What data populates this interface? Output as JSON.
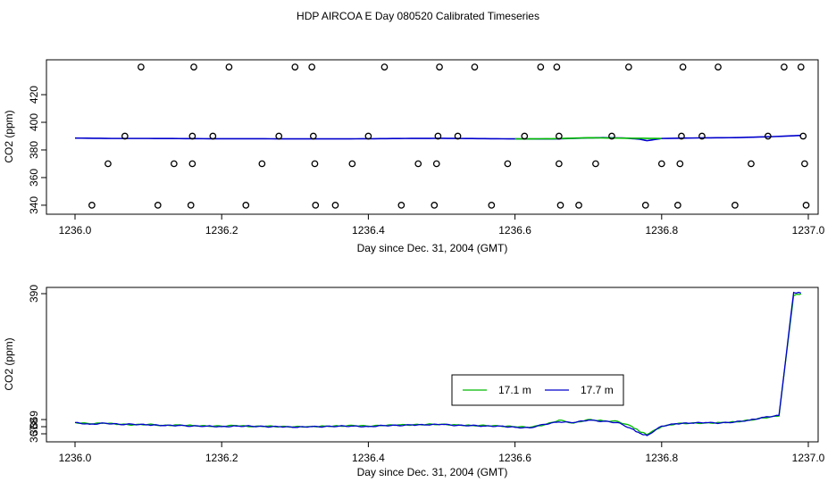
{
  "figure": {
    "title": "HDP AIRCOA E  Day 080520  Calibrated Timeseries",
    "colors": {
      "series_1": "#00bb00",
      "series_2": "#0000cc",
      "markers": "#000000",
      "frame": "#000000"
    }
  },
  "chart_data": [
    {
      "type": "scatter",
      "title": "",
      "xlabel": "Day since Dec. 31, 2004 (GMT)",
      "ylabel": "CO2 (ppm)",
      "xlim": [
        1236.0,
        1237.0
      ],
      "ylim": [
        338,
        442
      ],
      "xticks": [
        "1236.0",
        "1236.2",
        "1236.4",
        "1236.6",
        "1236.8",
        "1237.0"
      ],
      "yticks": [
        "340",
        "360",
        "380",
        "400",
        "420"
      ],
      "grid": false,
      "markers": {
        "x": [
          1236.023,
          1236.045,
          1236.068,
          1236.09,
          1236.113,
          1236.135,
          1236.158,
          1236.16,
          1236.16,
          1236.162,
          1236.188,
          1236.21,
          1236.233,
          1236.255,
          1236.278,
          1236.3,
          1236.323,
          1236.325,
          1236.327,
          1236.328,
          1236.355,
          1236.378,
          1236.4,
          1236.422,
          1236.445,
          1236.468,
          1236.49,
          1236.493,
          1236.495,
          1236.497,
          1236.522,
          1236.545,
          1236.568,
          1236.59,
          1236.613,
          1236.635,
          1236.657,
          1236.66,
          1236.66,
          1236.662,
          1236.687,
          1236.71,
          1236.732,
          1236.755,
          1236.778,
          1236.8,
          1236.822,
          1236.825,
          1236.827,
          1236.829,
          1236.855,
          1236.877,
          1236.9,
          1236.922,
          1236.945,
          1236.967,
          1236.99,
          1236.993,
          1236.995,
          1236.997
        ],
        "y": [
          340,
          370,
          390,
          440,
          340,
          370,
          340,
          370,
          390,
          440,
          390,
          440,
          340,
          370,
          390,
          440,
          440,
          390,
          370,
          340,
          340,
          370,
          390,
          440,
          340,
          370,
          340,
          370,
          390,
          440,
          390,
          440,
          340,
          370,
          390,
          440,
          440,
          390,
          370,
          340,
          340,
          370,
          390,
          440,
          340,
          370,
          340,
          370,
          390,
          440,
          390,
          440,
          340,
          370,
          390,
          440,
          440,
          390,
          370,
          340
        ]
      },
      "series": [
        {
          "color": "#0000cc",
          "x": [
            1236.0,
            1236.05,
            1236.1,
            1236.15,
            1236.2,
            1236.25,
            1236.3,
            1236.35,
            1236.4,
            1236.45,
            1236.5,
            1236.55,
            1236.6,
            1236.65,
            1236.7,
            1236.72,
            1236.75,
            1236.77,
            1236.78,
            1236.8,
            1236.85,
            1236.9,
            1236.95,
            1236.99
          ],
          "y": [
            388.6,
            388.3,
            388.3,
            388.2,
            388.1,
            388.1,
            388.0,
            388.0,
            388.1,
            388.3,
            388.4,
            388.2,
            388.0,
            387.9,
            388.7,
            388.9,
            388.6,
            387.8,
            386.7,
            388.3,
            388.7,
            388.9,
            389.6,
            390.5
          ]
        },
        {
          "color": "#00bb00",
          "x": [
            1236.6,
            1236.65,
            1236.7,
            1236.75,
            1236.8
          ],
          "y": [
            388.0,
            388.1,
            388.8,
            388.5,
            388.3
          ]
        }
      ]
    },
    {
      "type": "line",
      "title": "",
      "xlabel": "Day since Dec. 31, 2004 (GMT)",
      "ylabel": "CO2 (ppm)",
      "xlim": [
        1236.0,
        1237.0
      ],
      "ylim": [
        366.2,
        390.7
      ],
      "xticks": [
        "1236.0",
        "1236.2",
        "1236.4",
        "1236.6",
        "1236.8",
        "1237.0"
      ],
      "yticks": [
        "367",
        "368",
        "369",
        "390"
      ],
      "ytick_values": [
        366.8,
        368.0,
        369.2,
        390.4
      ],
      "grid": false,
      "legend": {
        "placement": "inside-lower-right",
        "entries": [
          "17.1 m",
          "17.7 m"
        ]
      },
      "series": [
        {
          "name": "17.1 m",
          "color": "#00bb00",
          "x": [
            1236.0,
            1236.02,
            1236.04,
            1236.06,
            1236.08,
            1236.1,
            1236.12,
            1236.14,
            1236.16,
            1236.18,
            1236.2,
            1236.22,
            1236.24,
            1236.26,
            1236.28,
            1236.3,
            1236.32,
            1236.34,
            1236.36,
            1236.38,
            1236.4,
            1236.42,
            1236.44,
            1236.46,
            1236.48,
            1236.5,
            1236.52,
            1236.54,
            1236.56,
            1236.58,
            1236.6,
            1236.62,
            1236.64,
            1236.66,
            1236.68,
            1236.7,
            1236.72,
            1236.74,
            1236.76,
            1236.77,
            1236.78,
            1236.8,
            1236.82,
            1236.84,
            1236.86,
            1236.88,
            1236.9,
            1236.92,
            1236.94,
            1236.96,
            1236.98,
            1236.99
          ],
          "y": [
            368.7,
            368.5,
            368.6,
            368.4,
            368.3,
            368.4,
            368.2,
            368.3,
            368.2,
            368.1,
            368.1,
            368.2,
            368.0,
            368.1,
            368.0,
            368.0,
            368.0,
            368.1,
            368.1,
            368.2,
            368.1,
            368.2,
            368.3,
            368.3,
            368.4,
            368.4,
            368.3,
            368.2,
            368.2,
            368.1,
            368.0,
            367.9,
            368.3,
            369.1,
            368.6,
            369.2,
            369.0,
            368.9,
            368.0,
            367.2,
            366.7,
            368.0,
            368.5,
            368.6,
            368.6,
            368.7,
            368.8,
            369.1,
            369.5,
            369.8,
            390.1,
            390.4
          ]
        },
        {
          "name": "17.7 m",
          "color": "#0000cc",
          "x": [
            1236.0,
            1236.02,
            1236.04,
            1236.06,
            1236.08,
            1236.1,
            1236.12,
            1236.14,
            1236.16,
            1236.18,
            1236.2,
            1236.22,
            1236.24,
            1236.26,
            1236.28,
            1236.3,
            1236.32,
            1236.34,
            1236.36,
            1236.38,
            1236.4,
            1236.42,
            1236.44,
            1236.46,
            1236.48,
            1236.5,
            1236.52,
            1236.54,
            1236.56,
            1236.58,
            1236.6,
            1236.62,
            1236.64,
            1236.66,
            1236.68,
            1236.7,
            1236.72,
            1236.74,
            1236.76,
            1236.77,
            1236.78,
            1236.8,
            1236.82,
            1236.84,
            1236.86,
            1236.88,
            1236.9,
            1236.92,
            1236.94,
            1236.96,
            1236.98,
            1236.99
          ],
          "y": [
            368.7,
            368.4,
            368.6,
            368.4,
            368.4,
            368.3,
            368.2,
            368.2,
            368.1,
            368.1,
            368.0,
            368.1,
            368.1,
            368.0,
            368.0,
            367.9,
            368.0,
            368.0,
            368.1,
            368.1,
            368.0,
            368.2,
            368.2,
            368.3,
            368.3,
            368.4,
            368.2,
            368.2,
            368.1,
            368.1,
            367.9,
            367.8,
            368.4,
            368.8,
            368.7,
            369.1,
            368.9,
            368.7,
            367.6,
            366.9,
            366.5,
            368.1,
            368.5,
            368.6,
            368.7,
            368.6,
            368.8,
            369.1,
            369.6,
            369.9,
            390.6,
            390.5
          ]
        }
      ]
    }
  ]
}
